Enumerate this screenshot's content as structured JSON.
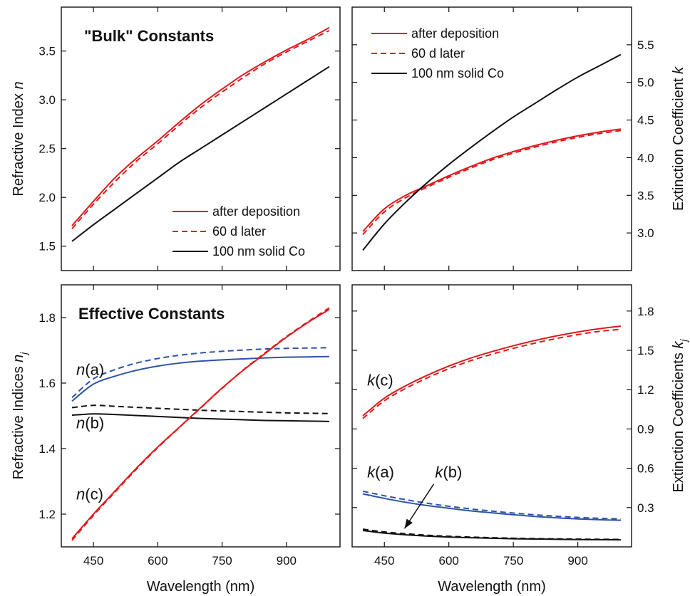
{
  "colors": {
    "red": "#e0191b",
    "black": "#111111",
    "blue": "#2d52a8"
  },
  "chart_data": [
    {
      "id": "bulk-n",
      "type": "line",
      "title": "\"Bulk\" Constants",
      "xlabel": "",
      "ylabel": "Refractive Index n",
      "ylabel_parts": [
        "Refractive Index ",
        "n"
      ],
      "xlim": [
        375,
        1025
      ],
      "ylim": [
        1.25,
        3.95
      ],
      "xticks": [
        450,
        600,
        750,
        900
      ],
      "xtick_labels": [
        "",
        "",
        "",
        ""
      ],
      "yticks": [
        1.5,
        2.0,
        2.5,
        3.0,
        3.5
      ],
      "ytick_labels": [
        "1.5",
        "2.0",
        "2.5",
        "3.0",
        "3.5"
      ],
      "yaxis_side": "left",
      "legend": {
        "position": "bottom-right",
        "entries": [
          "after deposition",
          "60 d later",
          "100 nm solid Co"
        ]
      },
      "series": [
        {
          "name": "after deposition",
          "color": "red",
          "dash": false,
          "x": [
            400,
            450,
            500,
            550,
            600,
            650,
            700,
            750,
            800,
            850,
            900,
            950,
            1000
          ],
          "y": [
            1.71,
            1.96,
            2.2,
            2.4,
            2.58,
            2.77,
            2.95,
            3.11,
            3.26,
            3.39,
            3.51,
            3.62,
            3.74
          ]
        },
        {
          "name": "60 d later",
          "color": "red",
          "dash": true,
          "x": [
            400,
            450,
            500,
            550,
            600,
            650,
            700,
            750,
            800,
            850,
            900,
            950,
            1000
          ],
          "y": [
            1.68,
            1.93,
            2.16,
            2.37,
            2.55,
            2.74,
            2.92,
            3.08,
            3.23,
            3.37,
            3.49,
            3.6,
            3.71
          ]
        },
        {
          "name": "100 nm solid Co",
          "color": "black",
          "dash": false,
          "x": [
            400,
            450,
            500,
            550,
            600,
            650,
            700,
            750,
            800,
            850,
            900,
            950,
            1000
          ],
          "y": [
            1.55,
            1.72,
            1.88,
            2.04,
            2.2,
            2.36,
            2.5,
            2.64,
            2.78,
            2.92,
            3.06,
            3.2,
            3.34
          ]
        }
      ],
      "annotations": []
    },
    {
      "id": "bulk-k",
      "type": "line",
      "title": "",
      "xlabel": "",
      "ylabel": "Extinction Coefficient k",
      "ylabel_parts": [
        "Extinction Coefficient ",
        "k"
      ],
      "xlim": [
        375,
        1025
      ],
      "ylim": [
        2.5,
        6.0
      ],
      "xticks": [
        450,
        600,
        750,
        900
      ],
      "xtick_labels": [
        "",
        "",
        "",
        ""
      ],
      "yticks": [
        3.0,
        3.5,
        4.0,
        4.5,
        5.0,
        5.5
      ],
      "ytick_labels": [
        "3.0",
        "3.5",
        "4.0",
        "4.5",
        "5.0",
        "5.5"
      ],
      "yaxis_side": "right",
      "legend": {
        "position": "top-left",
        "entries": [
          "after deposition",
          "60 d later",
          "100 nm solid Co"
        ]
      },
      "series": [
        {
          "name": "after deposition",
          "color": "red",
          "dash": false,
          "x": [
            400,
            450,
            500,
            550,
            600,
            650,
            700,
            750,
            800,
            850,
            900,
            950,
            1000
          ],
          "y": [
            3.02,
            3.32,
            3.5,
            3.63,
            3.76,
            3.88,
            3.99,
            4.08,
            4.16,
            4.23,
            4.29,
            4.34,
            4.38
          ]
        },
        {
          "name": "60 d later",
          "color": "red",
          "dash": true,
          "x": [
            400,
            450,
            500,
            550,
            600,
            650,
            700,
            750,
            800,
            850,
            900,
            950,
            1000
          ],
          "y": [
            2.98,
            3.28,
            3.47,
            3.61,
            3.74,
            3.86,
            3.97,
            4.06,
            4.14,
            4.21,
            4.27,
            4.32,
            4.36
          ]
        },
        {
          "name": "100 nm solid Co",
          "color": "black",
          "dash": false,
          "x": [
            400,
            450,
            500,
            550,
            600,
            650,
            700,
            750,
            800,
            850,
            900,
            950,
            1000
          ],
          "y": [
            2.77,
            3.12,
            3.41,
            3.67,
            3.91,
            4.13,
            4.34,
            4.54,
            4.72,
            4.9,
            5.07,
            5.22,
            5.37
          ]
        }
      ],
      "annotations": []
    },
    {
      "id": "eff-n",
      "type": "line",
      "title": "Effective Constants",
      "xlabel": "Wavelength (nm)",
      "ylabel": "Refractive Indices n_j",
      "ylabel_parts": [
        "Refractive Indices ",
        "n",
        "j"
      ],
      "xlim": [
        375,
        1025
      ],
      "ylim": [
        1.1,
        1.9
      ],
      "xticks": [
        450,
        600,
        750,
        900
      ],
      "xtick_labels": [
        "450",
        "600",
        "750",
        "900"
      ],
      "yticks": [
        1.2,
        1.4,
        1.6,
        1.8
      ],
      "ytick_labels": [
        "1.2",
        "1.4",
        "1.6",
        "1.8"
      ],
      "yaxis_side": "left",
      "legend": null,
      "series": [
        {
          "name": "",
          "color": "blue",
          "dash": false,
          "x": [
            400,
            450,
            500,
            550,
            600,
            650,
            700,
            750,
            800,
            850,
            900,
            950,
            1000
          ],
          "y": [
            1.545,
            1.597,
            1.621,
            1.639,
            1.652,
            1.661,
            1.667,
            1.671,
            1.674,
            1.677,
            1.679,
            1.68,
            1.681
          ]
        },
        {
          "name": "",
          "color": "blue",
          "dash": true,
          "x": [
            400,
            450,
            500,
            550,
            600,
            650,
            700,
            750,
            800,
            850,
            900,
            950,
            1000
          ],
          "y": [
            1.556,
            1.613,
            1.641,
            1.661,
            1.675,
            1.685,
            1.692,
            1.697,
            1.701,
            1.704,
            1.706,
            1.707,
            1.708
          ]
        },
        {
          "name": "",
          "color": "black",
          "dash": false,
          "x": [
            400,
            450,
            500,
            550,
            600,
            650,
            700,
            750,
            800,
            850,
            900,
            950,
            1000
          ],
          "y": [
            1.502,
            1.506,
            1.504,
            1.501,
            1.498,
            1.495,
            1.492,
            1.49,
            1.488,
            1.486,
            1.485,
            1.484,
            1.483
          ]
        },
        {
          "name": "",
          "color": "black",
          "dash": true,
          "x": [
            400,
            450,
            500,
            550,
            600,
            650,
            700,
            750,
            800,
            850,
            900,
            950,
            1000
          ],
          "y": [
            1.525,
            1.532,
            1.529,
            1.526,
            1.523,
            1.52,
            1.517,
            1.515,
            1.513,
            1.511,
            1.509,
            1.508,
            1.507
          ]
        },
        {
          "name": "",
          "color": "red",
          "dash": false,
          "x": [
            400,
            450,
            500,
            550,
            600,
            650,
            700,
            750,
            800,
            850,
            900,
            950,
            1000
          ],
          "y": [
            1.125,
            1.2,
            1.27,
            1.34,
            1.405,
            1.465,
            1.525,
            1.585,
            1.64,
            1.69,
            1.74,
            1.785,
            1.825
          ]
        },
        {
          "name": "",
          "color": "red",
          "dash": true,
          "x": [
            400,
            450,
            500,
            550,
            600,
            650,
            700,
            750,
            800,
            850,
            900,
            950,
            1000
          ],
          "y": [
            1.12,
            1.196,
            1.267,
            1.337,
            1.403,
            1.464,
            1.524,
            1.584,
            1.641,
            1.692,
            1.742,
            1.787,
            1.83
          ]
        }
      ],
      "annotations": [
        {
          "text": "n",
          "sub": "(a)",
          "x": 410,
          "y": 1.625
        },
        {
          "text": "n",
          "sub": "(b)",
          "x": 410,
          "y": 1.462
        },
        {
          "text": "n",
          "sub": "(c)",
          "x": 410,
          "y": 1.245
        }
      ]
    },
    {
      "id": "eff-k",
      "type": "line",
      "title": "",
      "xlabel": "Wavelength (nm)",
      "ylabel": "Extinction Coefficients k_j",
      "ylabel_parts": [
        "Extinction Coefficients ",
        "k",
        "j"
      ],
      "xlim": [
        375,
        1025
      ],
      "ylim": [
        0.0,
        2.0
      ],
      "xticks": [
        450,
        600,
        750,
        900
      ],
      "xtick_labels": [
        "450",
        "600",
        "750",
        "900"
      ],
      "yticks": [
        0.3,
        0.6,
        0.9,
        1.2,
        1.5,
        1.8
      ],
      "ytick_labels": [
        "0.3",
        "0.6",
        "0.9",
        "1.2",
        "1.5",
        "1.8"
      ],
      "yaxis_side": "right",
      "legend": null,
      "series": [
        {
          "name": "",
          "color": "red",
          "dash": false,
          "x": [
            400,
            450,
            500,
            550,
            600,
            650,
            700,
            750,
            800,
            850,
            900,
            950,
            1000
          ],
          "y": [
            1.0,
            1.135,
            1.23,
            1.31,
            1.38,
            1.44,
            1.49,
            1.535,
            1.575,
            1.61,
            1.64,
            1.665,
            1.685
          ]
        },
        {
          "name": "",
          "color": "red",
          "dash": true,
          "x": [
            400,
            450,
            500,
            550,
            600,
            650,
            700,
            750,
            800,
            850,
            900,
            950,
            1000
          ],
          "y": [
            0.98,
            1.115,
            1.21,
            1.29,
            1.36,
            1.42,
            1.47,
            1.515,
            1.555,
            1.59,
            1.62,
            1.645,
            1.66
          ]
        },
        {
          "name": "",
          "color": "blue",
          "dash": false,
          "x": [
            400,
            450,
            500,
            550,
            600,
            650,
            700,
            750,
            800,
            850,
            900,
            950,
            1000
          ],
          "y": [
            0.405,
            0.37,
            0.34,
            0.315,
            0.295,
            0.275,
            0.26,
            0.245,
            0.232,
            0.222,
            0.213,
            0.207,
            0.203
          ]
        },
        {
          "name": "",
          "color": "blue",
          "dash": true,
          "x": [
            400,
            450,
            500,
            550,
            600,
            650,
            700,
            750,
            800,
            850,
            900,
            950,
            1000
          ],
          "y": [
            0.425,
            0.39,
            0.36,
            0.333,
            0.31,
            0.29,
            0.273,
            0.258,
            0.245,
            0.234,
            0.225,
            0.218,
            0.213
          ]
        },
        {
          "name": "",
          "color": "black",
          "dash": false,
          "x": [
            400,
            450,
            500,
            550,
            600,
            650,
            700,
            750,
            800,
            850,
            900,
            950,
            1000
          ],
          "y": [
            0.125,
            0.105,
            0.092,
            0.082,
            0.075,
            0.07,
            0.066,
            0.062,
            0.06,
            0.058,
            0.056,
            0.055,
            0.054
          ]
        },
        {
          "name": "",
          "color": "black",
          "dash": true,
          "x": [
            400,
            450,
            500,
            550,
            600,
            650,
            700,
            750,
            800,
            850,
            900,
            950,
            1000
          ],
          "y": [
            0.135,
            0.114,
            0.1,
            0.089,
            0.081,
            0.075,
            0.07,
            0.066,
            0.063,
            0.061,
            0.059,
            0.058,
            0.057
          ]
        }
      ],
      "annotations": [
        {
          "text": "k",
          "sub": "(c)",
          "x": 410,
          "y": 1.23
        },
        {
          "text": "k",
          "sub": "(a)",
          "x": 410,
          "y": 0.53
        },
        {
          "text": "k",
          "sub": "(b)",
          "x": 568,
          "y": 0.53
        }
      ],
      "arrow": {
        "from": [
          565,
          0.48
        ],
        "to": [
          497,
          0.14
        ]
      }
    }
  ]
}
